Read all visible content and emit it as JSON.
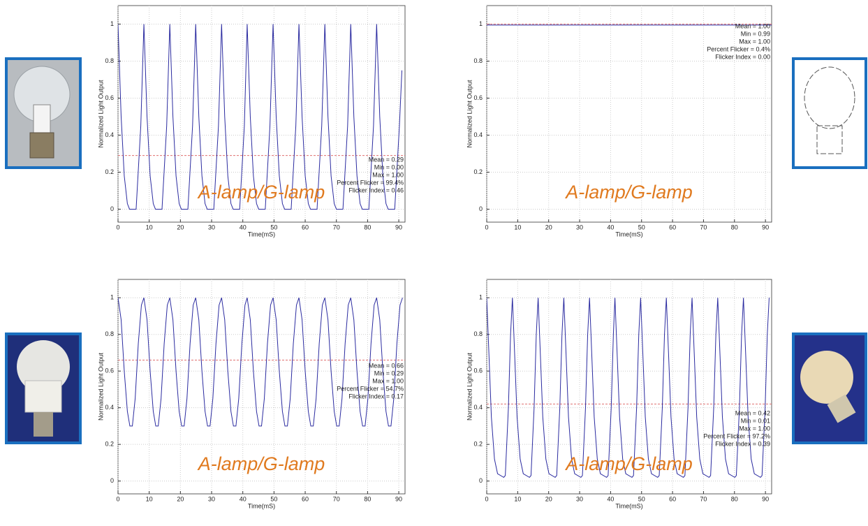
{
  "chart_data": [
    {
      "type": "line",
      "xlabel": "Time(mS)",
      "ylabel": "Normalized Light Output",
      "overlay": "A-lamp/G-lamp",
      "stats": [
        "Mean = 0.29",
        "Min = 0.00",
        "Max = 1.00",
        "Percent Flicker = 99.4%",
        "Flicker Index = 0.46"
      ],
      "mean_line": 0.29,
      "mean_line_color": "#e07070",
      "color": "#2b2ba0",
      "grid": true,
      "xlim": [
        0,
        92
      ],
      "ylim": [
        -0.07,
        1.1
      ],
      "xticks": [
        0,
        10,
        20,
        30,
        40,
        50,
        60,
        70,
        80,
        90
      ],
      "yticks": [
        0,
        0.2,
        0.4,
        0.6,
        0.8,
        1
      ],
      "x": [
        0,
        1,
        2,
        3,
        3.7,
        5.8,
        6.8,
        7.3,
        8.3,
        9.3,
        10.3,
        11.3,
        12,
        14.1,
        15.1,
        15.6,
        16.6,
        17.6,
        18.6,
        19.6,
        20.3,
        22.4,
        23.4,
        23.9,
        24.9,
        25.9,
        26.9,
        27.9,
        28.6,
        30.7,
        31.7,
        32.2,
        33.2,
        34.2,
        35.2,
        36.2,
        36.9,
        39,
        40,
        40.5,
        41.4,
        42.4,
        43.4,
        44.4,
        45.1,
        47.2,
        48.2,
        48.7,
        49.7,
        50.7,
        51.7,
        52.7,
        53.4,
        55.5,
        56.5,
        57,
        58,
        59,
        60,
        61,
        61.7,
        63.8,
        64.8,
        65.3,
        66.3,
        67.3,
        68.3,
        69.3,
        70,
        72.1,
        73.1,
        73.6,
        74.6,
        75.6,
        76.6,
        77.6,
        78.3,
        80.4,
        81.4,
        81.9,
        82.9,
        83.9,
        84.9,
        85.9,
        86.6,
        88.7,
        89.7,
        90.2,
        91
      ],
      "values": [
        1,
        0.5,
        0.18,
        0.03,
        0,
        0,
        0.3,
        0.45,
        1,
        0.5,
        0.18,
        0.03,
        0,
        0,
        0.3,
        0.45,
        1,
        0.5,
        0.18,
        0.03,
        0,
        0,
        0.3,
        0.45,
        1,
        0.5,
        0.18,
        0.03,
        0,
        0,
        0.3,
        0.45,
        1,
        0.5,
        0.18,
        0.03,
        0,
        0,
        0.3,
        0.45,
        1,
        0.5,
        0.18,
        0.03,
        0,
        0,
        0.3,
        0.45,
        1,
        0.5,
        0.18,
        0.03,
        0,
        0,
        0.3,
        0.45,
        1,
        0.5,
        0.18,
        0.03,
        0,
        0,
        0.3,
        0.45,
        1,
        0.5,
        0.18,
        0.03,
        0,
        0,
        0.3,
        0.45,
        1,
        0.5,
        0.18,
        0.03,
        0,
        0,
        0.3,
        0.45,
        1,
        0.5,
        0.18,
        0.03,
        0,
        0,
        0.3,
        0.45,
        0.75
      ]
    },
    {
      "type": "line",
      "xlabel": "Time(mS)",
      "ylabel": "Normalized Light Output",
      "overlay": "A-lamp/G-lamp",
      "stats": [
        "Mean = 1.00",
        "Min = 0.99",
        "Max = 1.00",
        "Percent Flicker = 0.4%",
        "Flicker Index = 0.00"
      ],
      "mean_line": 1,
      "mean_line_color": "#e07070",
      "color": "#2b2ba0",
      "grid": true,
      "xlim": [
        0,
        92
      ],
      "ylim": [
        -0.07,
        1.1
      ],
      "xticks": [
        0,
        10,
        20,
        30,
        40,
        50,
        60,
        70,
        80,
        90
      ],
      "yticks": [
        0,
        0.2,
        0.4,
        0.6,
        0.8,
        1
      ],
      "x": [
        0,
        92
      ],
      "values": [
        0.995,
        0.995
      ]
    },
    {
      "type": "line",
      "xlabel": "Time(mS)",
      "ylabel": "Normalized Light Output",
      "overlay": "A-lamp/G-lamp",
      "stats": [
        "Mean = 0.66",
        "Min = 0.29",
        "Max = 1.00",
        "Percent Flicker = 54.7%",
        "Flicker Index = 0.17"
      ],
      "mean_line": 0.66,
      "mean_line_color": "#e07070",
      "color": "#2b2ba0",
      "grid": true,
      "xlim": [
        0,
        92
      ],
      "ylim": [
        -0.07,
        1.1
      ],
      "xticks": [
        0,
        10,
        20,
        30,
        40,
        50,
        60,
        70,
        80,
        90
      ],
      "yticks": [
        0,
        0.2,
        0.4,
        0.6,
        0.8,
        1
      ],
      "x": [
        0,
        1,
        2,
        3,
        3.8,
        4.6,
        5.5,
        6.5,
        7.5,
        8.3,
        9.3,
        10.3,
        11.3,
        12.1,
        12.9,
        13.8,
        14.8,
        15.8,
        16.6,
        17.6,
        18.6,
        19.6,
        20.4,
        21.2,
        22.1,
        23.1,
        24.1,
        24.9,
        25.9,
        26.9,
        27.9,
        28.7,
        29.5,
        30.4,
        31.4,
        32.4,
        33.2,
        34.2,
        35.2,
        36.2,
        37,
        37.8,
        38.7,
        39.7,
        40.7,
        41.4,
        42.4,
        43.4,
        44.4,
        45.2,
        46,
        46.9,
        47.9,
        48.9,
        49.7,
        50.7,
        51.7,
        52.7,
        53.5,
        54.3,
        55.2,
        56.2,
        57.2,
        58,
        59,
        60,
        61,
        61.8,
        62.6,
        63.5,
        64.5,
        65.5,
        66.3,
        67.3,
        68.3,
        69.3,
        70.1,
        70.9,
        71.8,
        72.8,
        73.8,
        74.6,
        75.6,
        76.6,
        77.6,
        78.4,
        79.2,
        80.1,
        81.1,
        82.1,
        82.9,
        83.9,
        84.9,
        85.9,
        86.7,
        87.5,
        88.4,
        89.4,
        90.4,
        91.2
      ],
      "values": [
        1,
        0.88,
        0.6,
        0.38,
        0.3,
        0.3,
        0.45,
        0.75,
        0.96,
        1,
        0.88,
        0.6,
        0.38,
        0.3,
        0.3,
        0.45,
        0.75,
        0.96,
        1,
        0.88,
        0.6,
        0.38,
        0.3,
        0.3,
        0.45,
        0.75,
        0.96,
        1,
        0.88,
        0.6,
        0.38,
        0.3,
        0.3,
        0.45,
        0.75,
        0.96,
        1,
        0.88,
        0.6,
        0.38,
        0.3,
        0.3,
        0.45,
        0.75,
        0.96,
        1,
        0.88,
        0.6,
        0.38,
        0.3,
        0.3,
        0.45,
        0.75,
        0.96,
        1,
        0.88,
        0.6,
        0.38,
        0.3,
        0.3,
        0.45,
        0.75,
        0.96,
        1,
        0.88,
        0.6,
        0.38,
        0.3,
        0.3,
        0.45,
        0.75,
        0.96,
        1,
        0.88,
        0.6,
        0.38,
        0.3,
        0.3,
        0.45,
        0.75,
        0.96,
        1,
        0.88,
        0.6,
        0.38,
        0.3,
        0.3,
        0.45,
        0.75,
        0.96,
        1,
        0.88,
        0.6,
        0.38,
        0.3,
        0.3,
        0.45,
        0.75,
        0.96,
        1
      ]
    },
    {
      "type": "line",
      "xlabel": "Time(mS)",
      "ylabel": "Normalized Light Output",
      "overlay": "A-lamp/G-lamp",
      "stats": [
        "Mean = 0.42",
        "Min = 0.01",
        "Max = 1.00",
        "Percent Flicker = 97.2%",
        "Flicker Index = 0.39"
      ],
      "mean_line": 0.42,
      "mean_line_color": "#e07070",
      "color": "#2b2ba0",
      "grid": true,
      "xlim": [
        0,
        92
      ],
      "ylim": [
        -0.07,
        1.1
      ],
      "xticks": [
        0,
        10,
        20,
        30,
        40,
        50,
        60,
        70,
        80,
        90
      ],
      "yticks": [
        0,
        0.2,
        0.4,
        0.6,
        0.8,
        1
      ],
      "x": [
        0,
        0.7,
        1.5,
        2.5,
        3.5,
        5.5,
        6,
        7,
        7.7,
        8.3,
        9,
        9.8,
        10.8,
        11.8,
        13.8,
        14.3,
        15.3,
        16,
        16.6,
        17.3,
        18.1,
        19.1,
        20.1,
        22.1,
        22.6,
        23.6,
        24.3,
        24.9,
        25.6,
        26.4,
        27.4,
        28.4,
        30.4,
        30.9,
        31.9,
        32.6,
        33.2,
        33.9,
        34.7,
        35.7,
        36.7,
        38.7,
        39.2,
        40.2,
        40.9,
        41.4,
        42.1,
        42.9,
        43.9,
        44.9,
        46.9,
        47.4,
        48.4,
        49.1,
        49.7,
        50.4,
        51.2,
        52.2,
        53.2,
        55.2,
        55.7,
        56.7,
        57.4,
        58,
        58.7,
        59.5,
        60.5,
        61.5,
        63.5,
        64,
        65,
        65.7,
        66.3,
        67,
        67.8,
        68.8,
        69.8,
        71.8,
        72.3,
        73.3,
        74,
        74.6,
        75.3,
        76.1,
        77.1,
        78.1,
        80.1,
        80.6,
        81.6,
        82.3,
        82.9,
        83.6,
        84.4,
        85.4,
        86.4,
        88.4,
        88.9,
        89.9,
        90.6,
        91.2
      ],
      "values": [
        1,
        0.7,
        0.35,
        0.12,
        0.04,
        0.02,
        0.03,
        0.4,
        0.8,
        1,
        0.7,
        0.35,
        0.12,
        0.04,
        0.02,
        0.03,
        0.4,
        0.8,
        1,
        0.7,
        0.35,
        0.12,
        0.04,
        0.02,
        0.03,
        0.4,
        0.8,
        1,
        0.7,
        0.35,
        0.12,
        0.04,
        0.02,
        0.03,
        0.4,
        0.8,
        1,
        0.7,
        0.35,
        0.12,
        0.04,
        0.02,
        0.03,
        0.4,
        0.8,
        1,
        0.7,
        0.35,
        0.12,
        0.04,
        0.02,
        0.03,
        0.4,
        0.8,
        1,
        0.7,
        0.35,
        0.12,
        0.04,
        0.02,
        0.03,
        0.4,
        0.8,
        1,
        0.7,
        0.35,
        0.12,
        0.04,
        0.02,
        0.03,
        0.4,
        0.8,
        1,
        0.7,
        0.35,
        0.12,
        0.04,
        0.02,
        0.03,
        0.4,
        0.8,
        1,
        0.7,
        0.35,
        0.12,
        0.04,
        0.02,
        0.03,
        0.4,
        0.8,
        1,
        0.7,
        0.35,
        0.12,
        0.04,
        0.02,
        0.03,
        0.4,
        0.8,
        1
      ]
    }
  ]
}
